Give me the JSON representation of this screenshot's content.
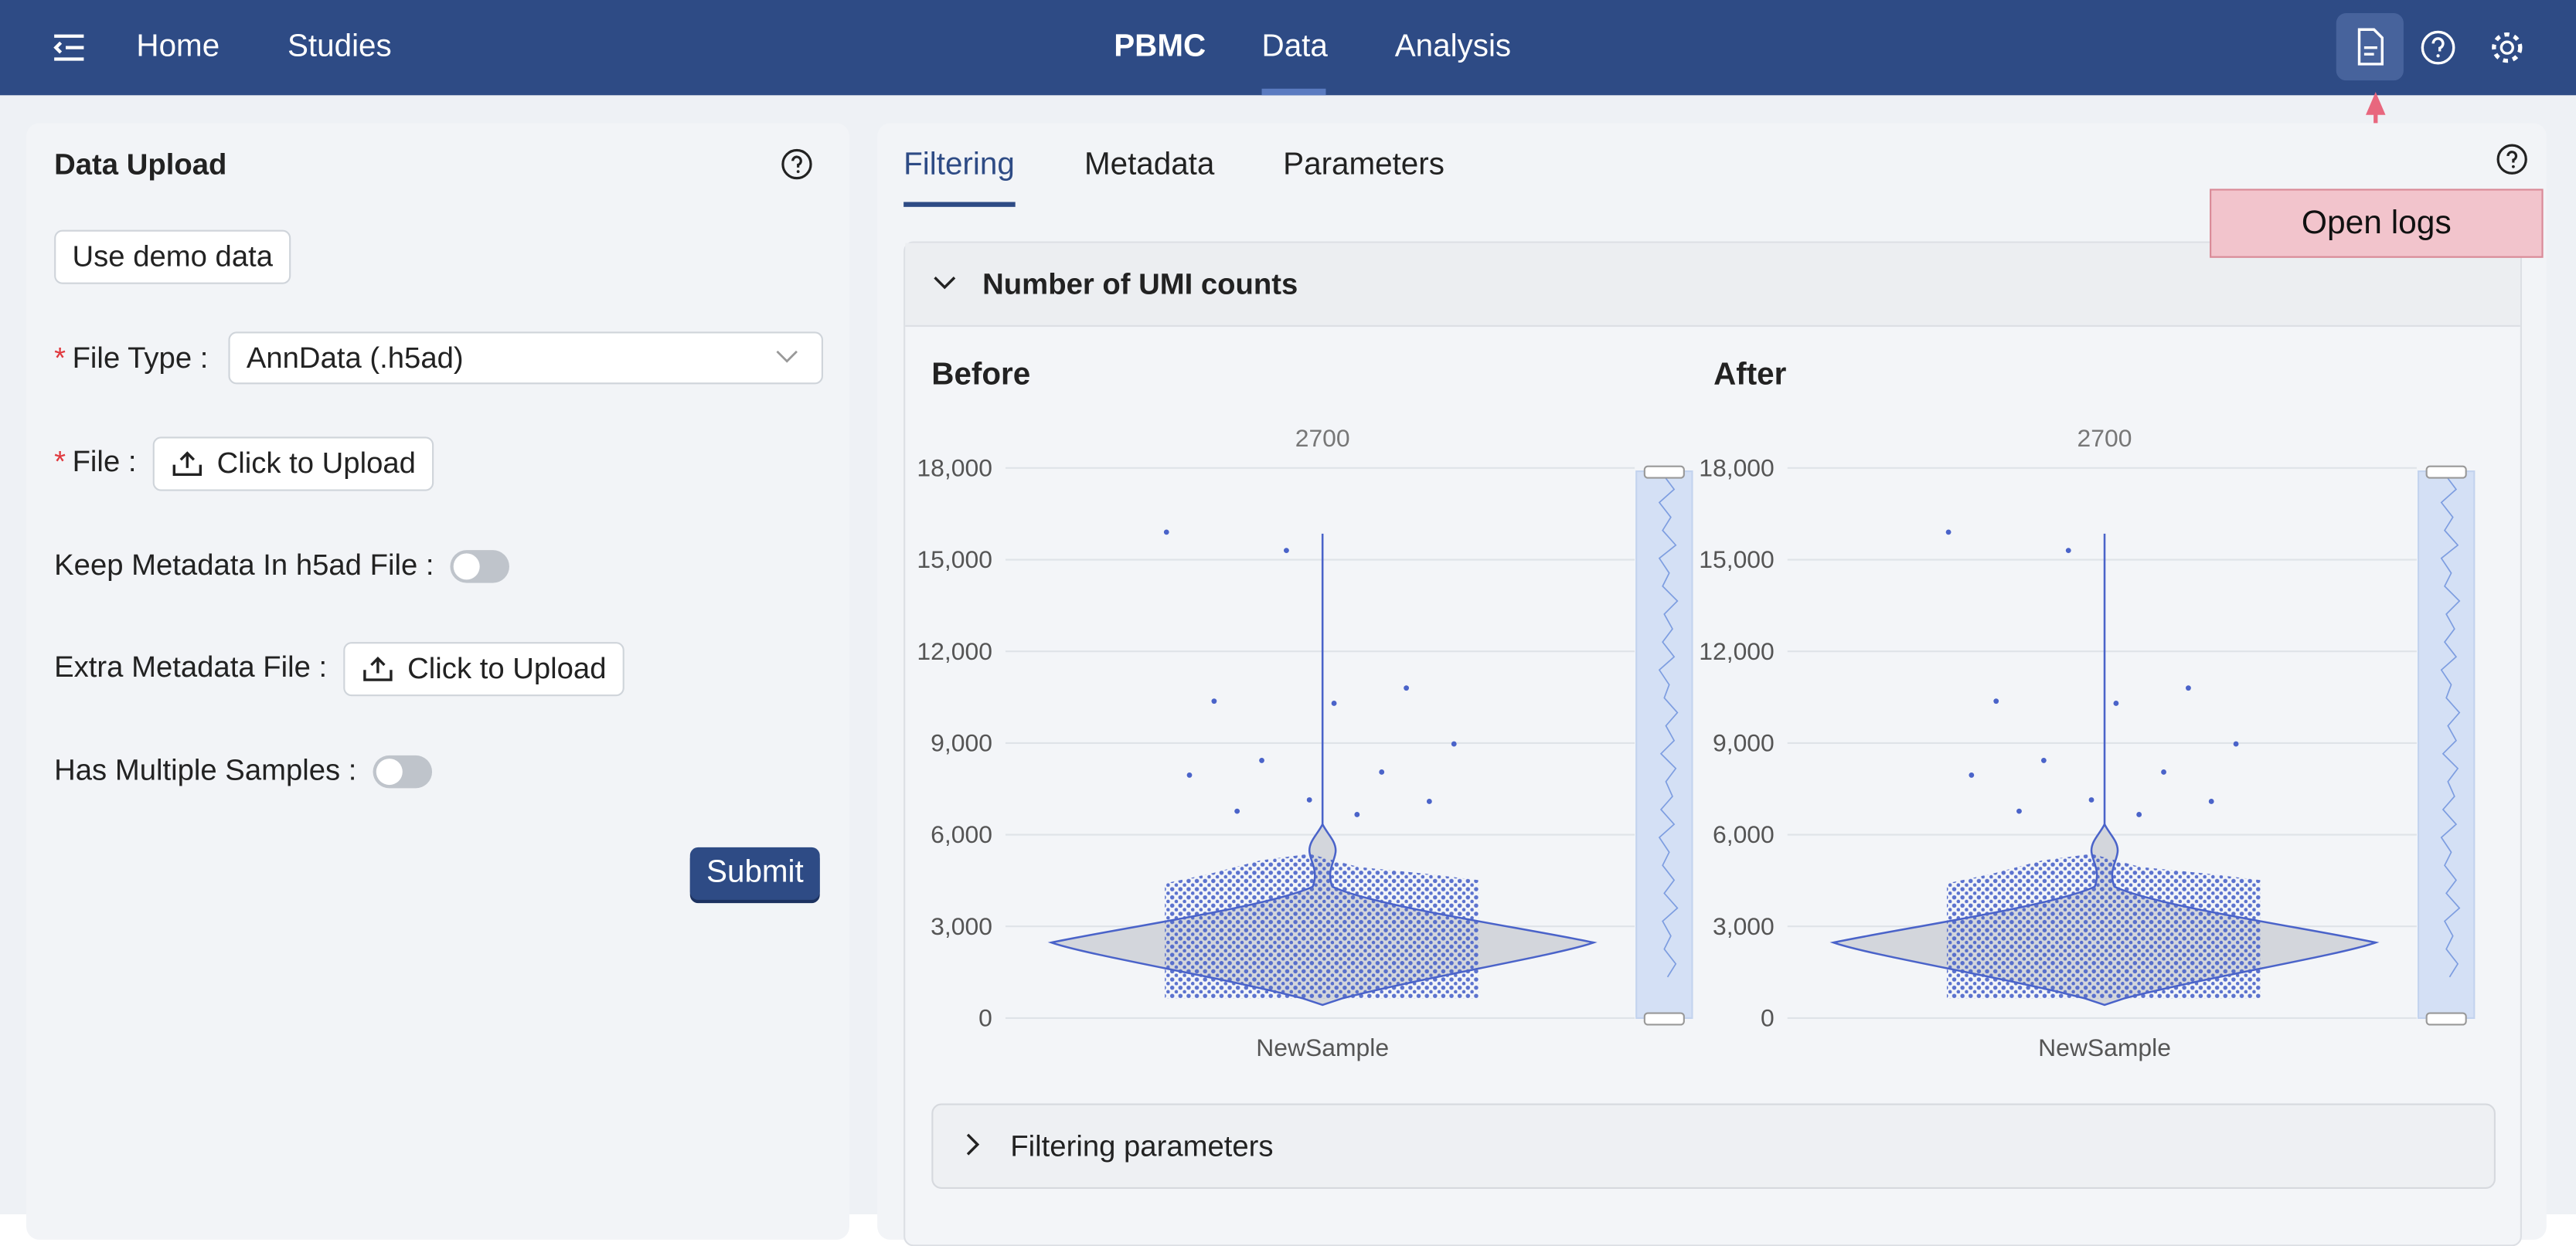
{
  "nav": {
    "home": "Home",
    "studies": "Studies",
    "center": [
      "PBMC",
      "Data",
      "Analysis"
    ],
    "active": 1
  },
  "tooltip": "Open logs",
  "upload": {
    "title": "Data Upload",
    "demo": "Use demo data",
    "fields": [
      {
        "required": "*",
        "label": "File Type :",
        "select": "AnnData (.h5ad)"
      },
      {
        "required": "*",
        "label": "File :",
        "button": "Click to Upload"
      },
      {
        "label": "Keep Metadata In h5ad File :",
        "toggle": false
      },
      {
        "label": "Extra Metadata File :",
        "button": "Click to Upload"
      },
      {
        "label": "Has Multiple Samples :",
        "toggle": false
      }
    ],
    "submit": "Submit"
  },
  "tabs": [
    "Filtering",
    "Metadata",
    "Parameters"
  ],
  "section": "Number of UMI counts",
  "chart_data": [
    {
      "type": "violin",
      "title": "Before",
      "count": 2700,
      "categories": [
        "NewSample"
      ],
      "ylim": [
        0,
        18000
      ],
      "yticks": [
        0,
        {
          "value": 3000,
          "label": "3,000"
        },
        {
          "value": 6000,
          "label": "6,000"
        },
        {
          "value": 9000,
          "label": "9,000"
        },
        {
          "value": 12000,
          "label": "12,000"
        },
        {
          "value": 15000,
          "label": "15,000"
        },
        {
          "value": 18000,
          "label": "18,000"
        }
      ],
      "grid": true,
      "color": "#4a63c9",
      "values": [
        15900,
        15300,
        10800,
        10370,
        10300,
        8970,
        8430,
        8050,
        7950,
        7140,
        7090,
        6770,
        6660
      ]
    },
    {
      "type": "violin",
      "title": "After",
      "count": 2700,
      "categories": [
        "NewSample"
      ],
      "ylim": [
        0,
        18000
      ],
      "yticks": [
        0,
        {
          "value": 3000,
          "label": "3,000"
        },
        {
          "value": 6000,
          "label": "6,000"
        },
        {
          "value": 9000,
          "label": "9,000"
        },
        {
          "value": 12000,
          "label": "12,000"
        },
        {
          "value": 15000,
          "label": "15,000"
        },
        {
          "value": 18000,
          "label": "18,000"
        }
      ],
      "grid": true,
      "color": "#4a63c9",
      "values": [
        15900,
        15300,
        10800,
        10370,
        10300,
        8970,
        8430,
        8050,
        7950,
        7140,
        7090,
        6770,
        6660
      ]
    }
  ],
  "filtering": "Filtering parameters"
}
